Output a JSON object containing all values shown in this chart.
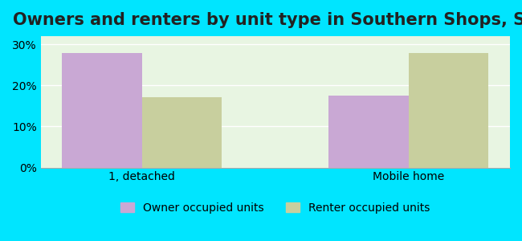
{
  "title": "Owners and renters by unit type in Southern Shops, SC",
  "categories": [
    "1, detached",
    "Mobile home"
  ],
  "owner_values": [
    27.9,
    17.6
  ],
  "renter_values": [
    17.1,
    27.8
  ],
  "owner_color": "#c9a8d4",
  "renter_color": "#c8cf9e",
  "owner_label": "Owner occupied units",
  "renter_label": "Renter occupied units",
  "ylim": [
    0,
    0.32
  ],
  "yticks": [
    0.0,
    0.1,
    0.2,
    0.3
  ],
  "ytick_labels": [
    "0%",
    "10%",
    "20%",
    "30%"
  ],
  "background_color": "#e8f5e2",
  "outer_background": "#00e5ff",
  "bar_width": 0.3,
  "title_fontsize": 15,
  "tick_fontsize": 10,
  "legend_fontsize": 10
}
